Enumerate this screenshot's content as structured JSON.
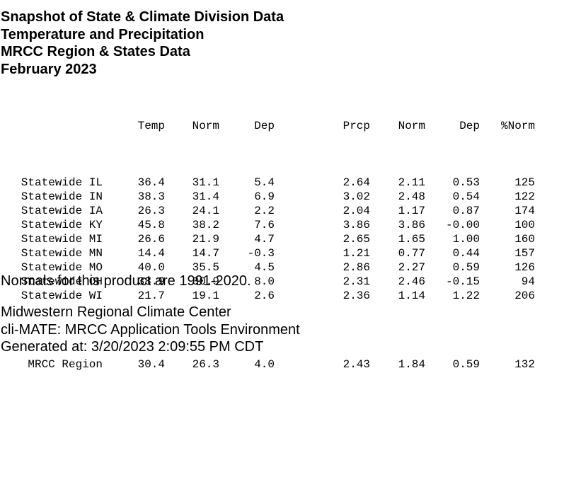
{
  "title": {
    "line1": "Snapshot of State & Climate Division Data",
    "line2": "Temperature and Precipitation",
    "line3": "MRCC Region & States Data",
    "line4": "February 2023"
  },
  "table": {
    "headers": {
      "temp": "Temp",
      "temp_norm": "Norm",
      "temp_dep": "Dep",
      "prcp": "Prcp",
      "prcp_norm": "Norm",
      "prcp_dep": "Dep",
      "pct_norm": "%Norm"
    },
    "rows": [
      {
        "label": "Statewide IL",
        "temp": "36.4",
        "temp_norm": "31.1",
        "temp_dep": "5.4",
        "prcp": "2.64",
        "prcp_norm": "2.11",
        "prcp_dep": "0.53",
        "pct_norm": "125"
      },
      {
        "label": "Statewide IN",
        "temp": "38.3",
        "temp_norm": "31.4",
        "temp_dep": "6.9",
        "prcp": "3.02",
        "prcp_norm": "2.48",
        "prcp_dep": "0.54",
        "pct_norm": "122"
      },
      {
        "label": "Statewide IA",
        "temp": "26.3",
        "temp_norm": "24.1",
        "temp_dep": "2.2",
        "prcp": "2.04",
        "prcp_norm": "1.17",
        "prcp_dep": "0.87",
        "pct_norm": "174"
      },
      {
        "label": "Statewide KY",
        "temp": "45.8",
        "temp_norm": "38.2",
        "temp_dep": "7.6",
        "prcp": "3.86",
        "prcp_norm": "3.86",
        "prcp_dep": "-0.00",
        "pct_norm": "100"
      },
      {
        "label": "Statewide MI",
        "temp": "26.6",
        "temp_norm": "21.9",
        "temp_dep": "4.7",
        "prcp": "2.65",
        "prcp_norm": "1.65",
        "prcp_dep": "1.00",
        "pct_norm": "160"
      },
      {
        "label": "Statewide MN",
        "temp": "14.4",
        "temp_norm": "14.7",
        "temp_dep": "-0.3",
        "prcp": "1.21",
        "prcp_norm": "0.77",
        "prcp_dep": "0.44",
        "pct_norm": "157"
      },
      {
        "label": "Statewide MO",
        "temp": "40.0",
        "temp_norm": "35.5",
        "temp_dep": "4.5",
        "prcp": "2.86",
        "prcp_norm": "2.27",
        "prcp_dep": "0.59",
        "pct_norm": "126"
      },
      {
        "label": "Statewide OH",
        "temp": "38.9",
        "temp_norm": "30.9",
        "temp_dep": "8.0",
        "prcp": "2.31",
        "prcp_norm": "2.46",
        "prcp_dep": "-0.15",
        "pct_norm": "94"
      },
      {
        "label": "Statewide WI",
        "temp": "21.7",
        "temp_norm": "19.1",
        "temp_dep": "2.6",
        "prcp": "2.36",
        "prcp_norm": "1.14",
        "prcp_dep": "1.22",
        "pct_norm": "206"
      }
    ],
    "region": {
      "label": "MRCC Region",
      "temp": "30.4",
      "temp_norm": "26.3",
      "temp_dep": "4.0",
      "prcp": "2.43",
      "prcp_norm": "1.84",
      "prcp_dep": "0.59",
      "pct_norm": "132"
    }
  },
  "footer": {
    "normals_note": "Normals for this product are 1991-2020.",
    "org": "Midwestern Regional Climate Center",
    "tool": "cli-MATE: MRCC Application Tools Environment",
    "generated": "Generated at: 3/20/2023 2:09:55 PM CDT"
  }
}
